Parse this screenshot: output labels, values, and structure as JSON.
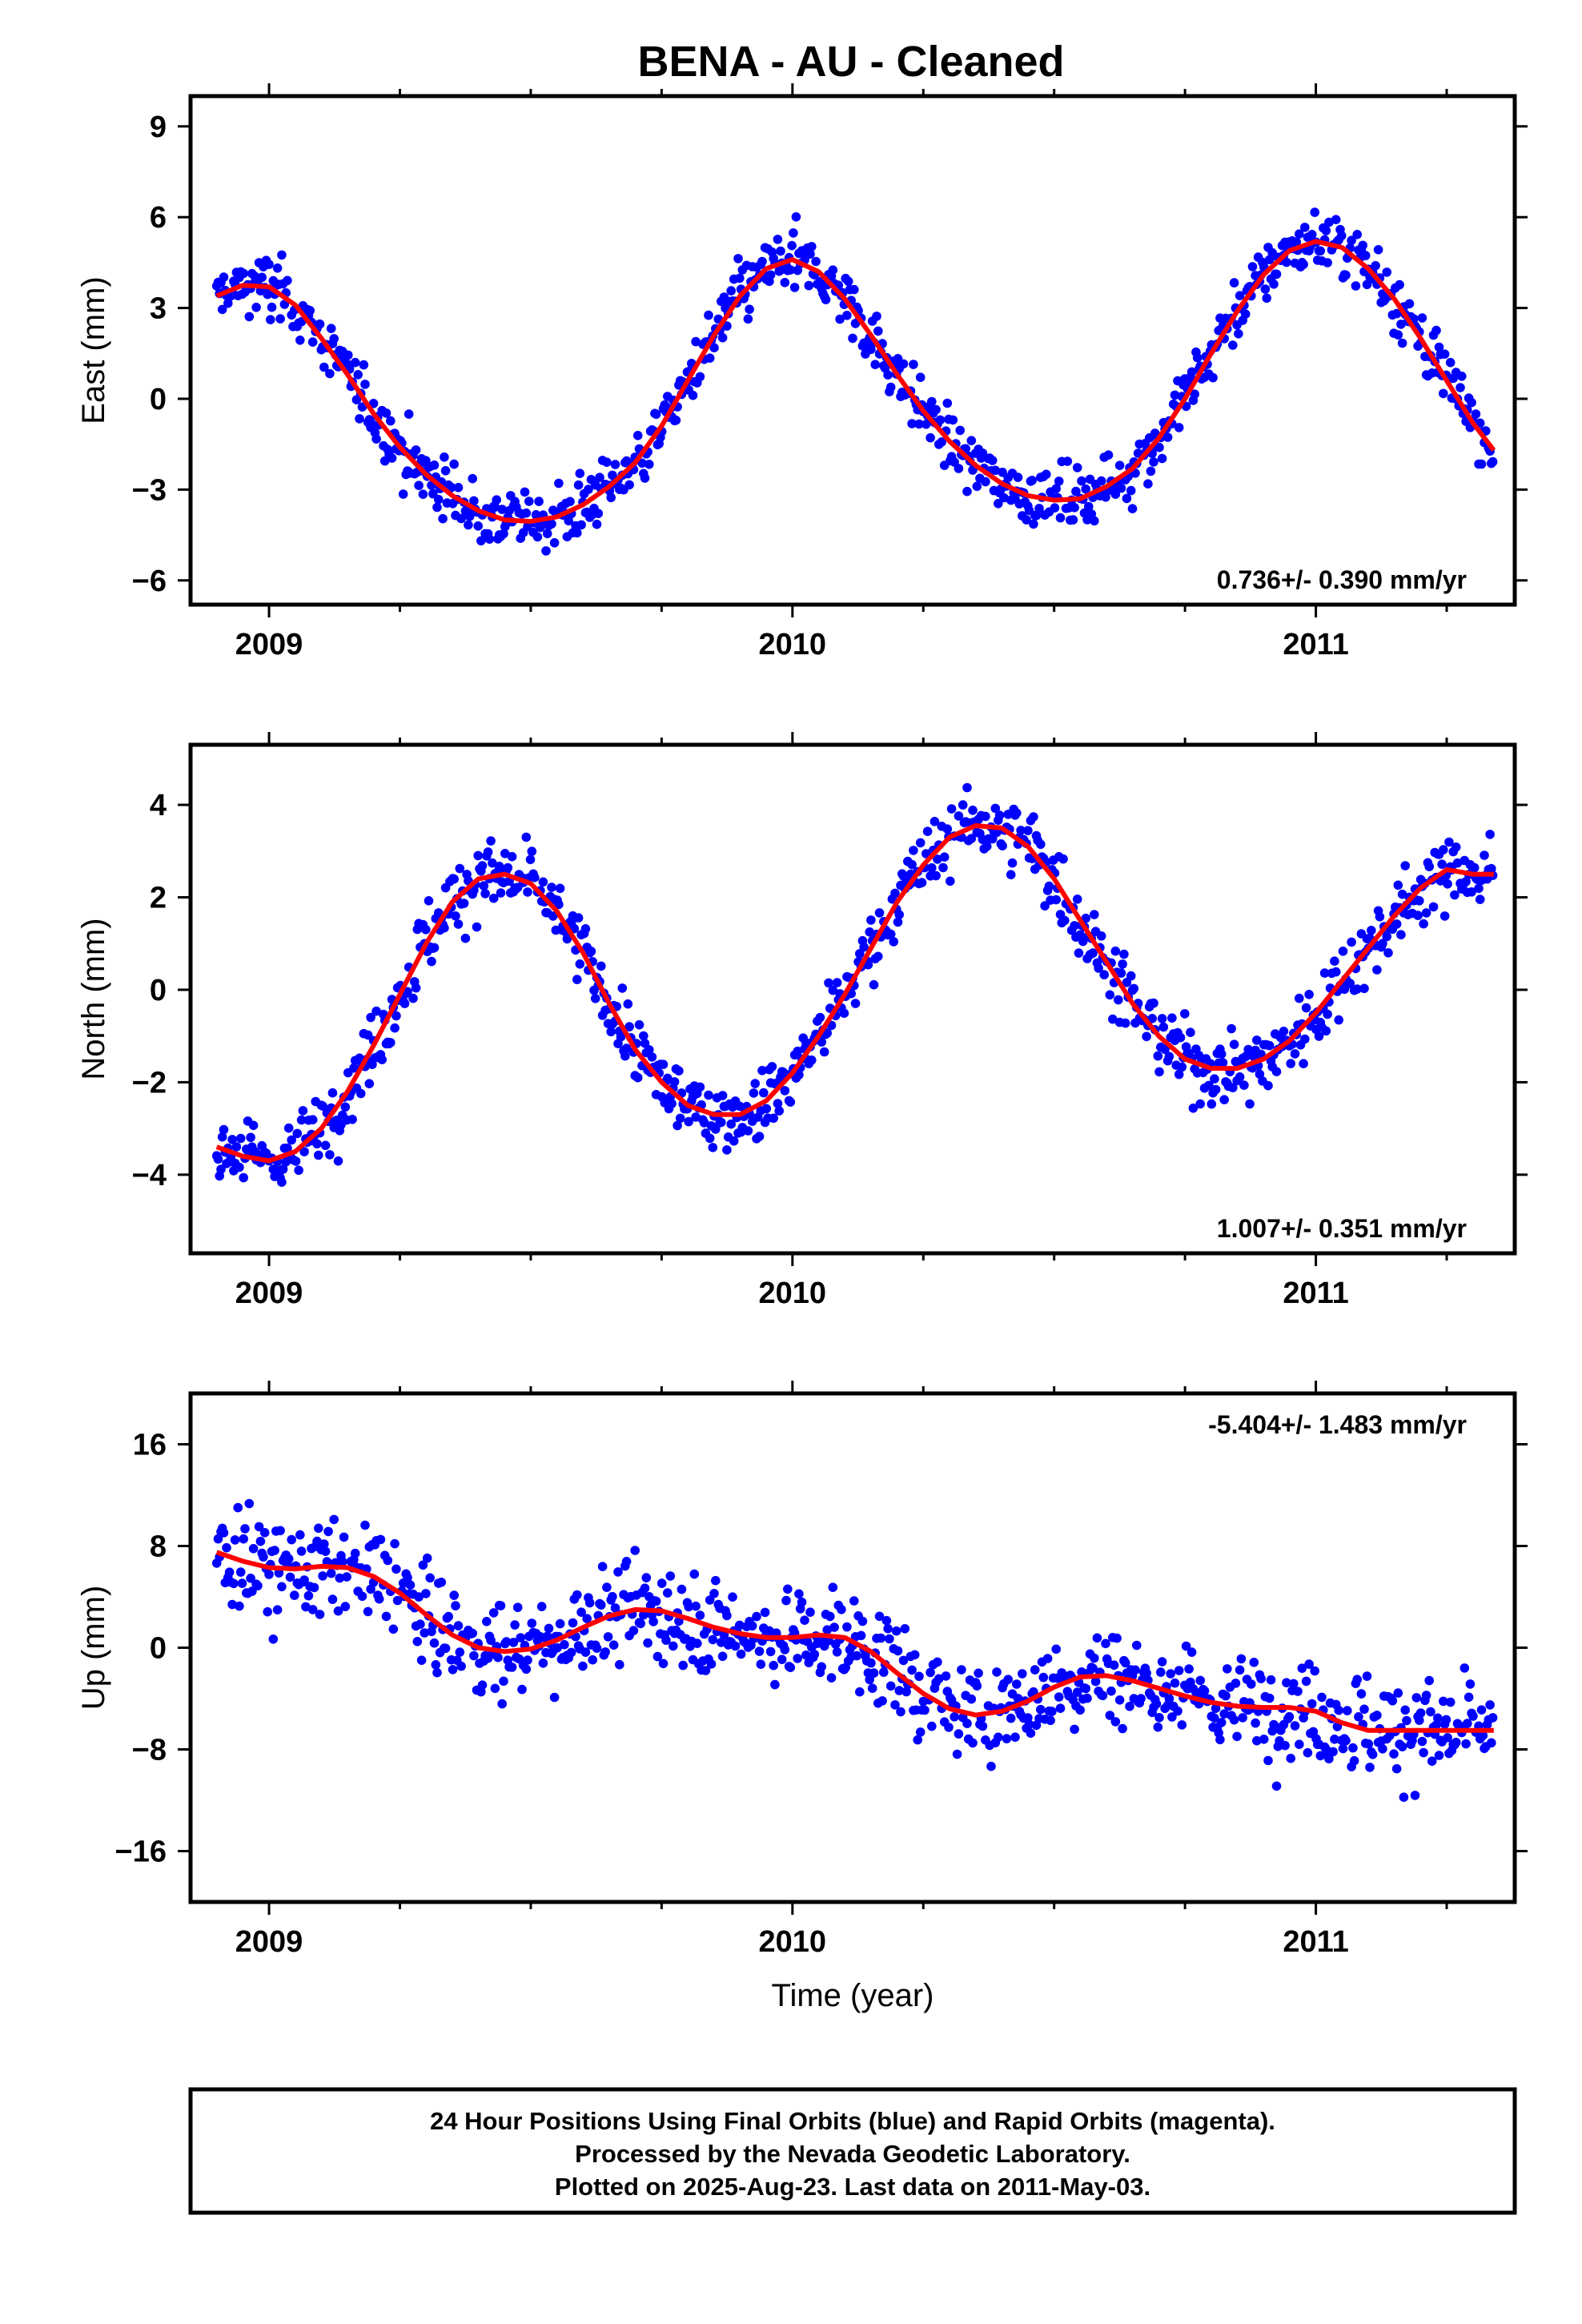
{
  "title": "BENA  - AU - Cleaned",
  "chart_data": [
    {
      "type": "scatter",
      "panel": "east",
      "ylabel": "East (mm)",
      "xlabel": "",
      "xlim": [
        2008.85,
        2011.38
      ],
      "ylim": [
        -6.8,
        10
      ],
      "yticks": [
        9,
        6,
        3,
        0,
        -3,
        -6
      ],
      "xticks": [
        2009,
        2010,
        2011
      ],
      "rate": "0.736+/- 0.390 mm/yr",
      "rate_position": "bottom-right",
      "series": [
        {
          "name": "Final Orbits (blue)",
          "color": "#0000ff",
          "kind": "points",
          "generated_from_model": true,
          "noise_sd": 1.0
        },
        {
          "name": "model",
          "color": "#ff0000",
          "kind": "fit",
          "x": [
            2008.9,
            2008.95,
            2009.0,
            2009.05,
            2009.1,
            2009.15,
            2009.2,
            2009.25,
            2009.3,
            2009.35,
            2009.4,
            2009.45,
            2009.5,
            2009.55,
            2009.6,
            2009.65,
            2009.7,
            2009.75,
            2009.8,
            2009.85,
            2009.9,
            2009.95,
            2010.0,
            2010.05,
            2010.1,
            2010.15,
            2010.2,
            2010.25,
            2010.3,
            2010.35,
            2010.4,
            2010.45,
            2010.5,
            2010.55,
            2010.6,
            2010.65,
            2010.7,
            2010.75,
            2010.8,
            2010.85,
            2010.9,
            2010.95,
            2011.0,
            2011.05,
            2011.1,
            2011.15,
            2011.2,
            2011.25,
            2011.3,
            2011.34
          ],
          "y": [
            3.4,
            3.75,
            3.7,
            3.1,
            2.0,
            0.8,
            -0.5,
            -1.6,
            -2.5,
            -3.2,
            -3.7,
            -4.0,
            -4.05,
            -3.9,
            -3.5,
            -2.9,
            -2.1,
            -0.9,
            0.6,
            2.1,
            3.4,
            4.3,
            4.6,
            4.2,
            3.3,
            2.1,
            0.8,
            -0.4,
            -1.4,
            -2.2,
            -2.8,
            -3.2,
            -3.35,
            -3.3,
            -2.9,
            -2.3,
            -1.3,
            0.0,
            1.5,
            2.9,
            4.1,
            4.9,
            5.2,
            5.0,
            4.3,
            3.3,
            2.0,
            0.6,
            -0.8,
            -1.7
          ]
        }
      ]
    },
    {
      "type": "scatter",
      "panel": "north",
      "ylabel": "North (mm)",
      "xlabel": "",
      "xlim": [
        2008.85,
        2011.38
      ],
      "ylim": [
        -5.7,
        5.3
      ],
      "yticks": [
        4,
        2,
        0,
        -2,
        -4
      ],
      "xticks": [
        2009,
        2010,
        2011
      ],
      "rate": "1.007+/- 0.351 mm/yr",
      "rate_position": "bottom-right",
      "series": [
        {
          "name": "Final Orbits (blue)",
          "color": "#0000ff",
          "kind": "points",
          "generated_from_model": true,
          "noise_sd": 0.75
        },
        {
          "name": "model",
          "color": "#ff0000",
          "kind": "fit",
          "x": [
            2008.9,
            2008.95,
            2009.0,
            2009.05,
            2009.1,
            2009.15,
            2009.2,
            2009.25,
            2009.3,
            2009.35,
            2009.4,
            2009.45,
            2009.5,
            2009.55,
            2009.6,
            2009.65,
            2009.7,
            2009.75,
            2009.8,
            2009.85,
            2009.9,
            2009.95,
            2010.0,
            2010.05,
            2010.1,
            2010.15,
            2010.2,
            2010.25,
            2010.3,
            2010.35,
            2010.4,
            2010.45,
            2010.5,
            2010.55,
            2010.6,
            2010.65,
            2010.7,
            2010.75,
            2010.8,
            2010.85,
            2010.9,
            2010.95,
            2011.0,
            2011.05,
            2011.1,
            2011.15,
            2011.2,
            2011.25,
            2011.3,
            2011.34
          ],
          "y": [
            -3.4,
            -3.6,
            -3.7,
            -3.5,
            -3.0,
            -2.2,
            -1.2,
            -0.1,
            1.0,
            1.9,
            2.4,
            2.5,
            2.3,
            1.7,
            0.8,
            -0.3,
            -1.3,
            -2.0,
            -2.5,
            -2.7,
            -2.7,
            -2.4,
            -1.8,
            -1.0,
            -0.1,
            0.9,
            1.9,
            2.7,
            3.3,
            3.55,
            3.5,
            3.1,
            2.4,
            1.5,
            0.6,
            -0.3,
            -1.0,
            -1.5,
            -1.7,
            -1.7,
            -1.5,
            -1.1,
            -0.5,
            0.2,
            0.9,
            1.6,
            2.2,
            2.6,
            2.5,
            2.5
          ]
        }
      ]
    },
    {
      "type": "scatter",
      "panel": "up",
      "ylabel": "Up (mm)",
      "xlabel": "Time (year)",
      "xlim": [
        2008.85,
        2011.38
      ],
      "ylim": [
        -20,
        20
      ],
      "yticks": [
        16,
        8,
        0,
        -8,
        -16
      ],
      "xticks": [
        2009,
        2010,
        2011
      ],
      "rate": "-5.404+/- 1.483 mm/yr",
      "rate_position": "top-right",
      "series": [
        {
          "name": "Final Orbits (blue)",
          "color": "#0000ff",
          "kind": "points",
          "generated_from_model": true,
          "noise_sd": 3.8
        },
        {
          "name": "model",
          "color": "#ff0000",
          "kind": "fit",
          "x": [
            2008.9,
            2008.95,
            2009.0,
            2009.05,
            2009.1,
            2009.15,
            2009.2,
            2009.25,
            2009.3,
            2009.35,
            2009.4,
            2009.45,
            2009.5,
            2009.55,
            2009.6,
            2009.65,
            2009.7,
            2009.75,
            2009.8,
            2009.85,
            2009.9,
            2009.95,
            2010.0,
            2010.05,
            2010.1,
            2010.15,
            2010.2,
            2010.25,
            2010.3,
            2010.35,
            2010.4,
            2010.45,
            2010.5,
            2010.55,
            2010.6,
            2010.65,
            2010.7,
            2010.75,
            2010.8,
            2010.85,
            2010.9,
            2010.95,
            2011.0,
            2011.05,
            2011.1,
            2011.15,
            2011.2,
            2011.25,
            2011.3,
            2011.34
          ],
          "y": [
            7.5,
            6.8,
            6.3,
            6.2,
            6.4,
            6.3,
            5.6,
            4.3,
            2.6,
            1.0,
            0.0,
            -0.3,
            -0.1,
            0.6,
            1.6,
            2.5,
            3.0,
            2.9,
            2.3,
            1.6,
            1.1,
            0.8,
            0.8,
            1.0,
            0.8,
            -0.3,
            -2.0,
            -3.6,
            -4.8,
            -5.3,
            -5.0,
            -4.2,
            -3.1,
            -2.3,
            -2.2,
            -2.6,
            -3.2,
            -3.8,
            -4.3,
            -4.6,
            -4.7,
            -4.7,
            -5.0,
            -5.9,
            -6.5,
            -6.5,
            -6.5,
            -6.5,
            -6.5,
            -6.5
          ]
        }
      ]
    }
  ],
  "footer": {
    "line1": "24 Hour Positions Using Final Orbits (blue) and Rapid Orbits (magenta).",
    "line2": "Processed by the Nevada Geodetic Laboratory.",
    "line3": "Plotted on 2025-Aug-23. Last data on 2011-May-03."
  }
}
